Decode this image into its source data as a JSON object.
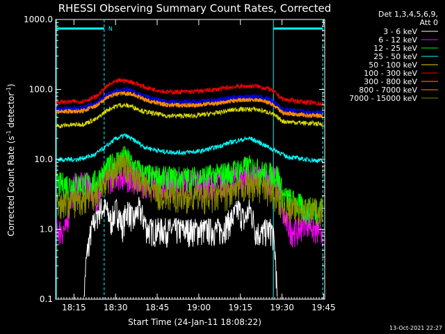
{
  "chart_data": {
    "type": "line",
    "title": "RHESSI Observing Summary Count Rates, Corrected",
    "xlabel": "Start Time (24-Jan-11 18:08:22)",
    "ylabel_main": "Corrected Count Rate (s",
    "ylabel_sup1": "-1",
    "ylabel_mid": " detector",
    "ylabel_sup2": "-1",
    "ylabel_end": ")",
    "y_scale": "log",
    "ylim": [
      0.1,
      1000
    ],
    "y_ticks": [
      "0.1",
      "1.0",
      "10.0",
      "100.0",
      "1000.0"
    ],
    "xlim_minutes": [
      0,
      97
    ],
    "x_ticks": [
      {
        "label": "18:15",
        "min": 6.6
      },
      {
        "label": "18:30",
        "min": 21.6
      },
      {
        "label": "18:45",
        "min": 36.6
      },
      {
        "label": "19:00",
        "min": 51.6
      },
      {
        "label": "19:15",
        "min": 66.6
      },
      {
        "label": "19:30",
        "min": 81.6
      },
      {
        "label": "19:45",
        "min": 96.6
      }
    ],
    "legend_header": [
      "Det 1,3,4,5,6,9,",
      "Att 0"
    ],
    "legend_position": "right",
    "night_bar_label": "N",
    "night_intervals_min": [
      [
        0.3,
        17.5
      ],
      [
        78.5,
        96.3
      ]
    ],
    "vertical_markers_min": [
      {
        "min": 0.3,
        "style": "solid"
      },
      {
        "min": 17.5,
        "style": "dashed"
      },
      {
        "min": 78.5,
        "style": "solid"
      },
      {
        "min": 96.3,
        "style": "dashed"
      }
    ],
    "series": [
      {
        "name": "3 - 6 keV",
        "color": "#ffffff",
        "points": [
          [
            0.3,
            0
          ],
          [
            5,
            0
          ],
          [
            10,
            0
          ],
          [
            16,
            2
          ],
          [
            18,
            2
          ],
          [
            20,
            1.3
          ],
          [
            22,
            2
          ],
          [
            24,
            1.1
          ],
          [
            26,
            2
          ],
          [
            28,
            1.3
          ],
          [
            30,
            2
          ],
          [
            33,
            1
          ],
          [
            40,
            1
          ],
          [
            50,
            1
          ],
          [
            60,
            1
          ],
          [
            64,
            1.5
          ],
          [
            66,
            2
          ],
          [
            68,
            1.3
          ],
          [
            70,
            2
          ],
          [
            72,
            1
          ],
          [
            74,
            0.85
          ],
          [
            76,
            1
          ],
          [
            78,
            1
          ],
          [
            80,
            0
          ]
        ]
      },
      {
        "name": "6 - 12 keV",
        "color": "#ff00ff",
        "points": [
          [
            0.3,
            1.0
          ],
          [
            4,
            1.0
          ],
          [
            5.5,
            3
          ],
          [
            7,
            4.5
          ],
          [
            12,
            4.5
          ],
          [
            15,
            3
          ],
          [
            17,
            4.5
          ],
          [
            19,
            5.5
          ],
          [
            22,
            6.5
          ],
          [
            26,
            6
          ],
          [
            30,
            5
          ],
          [
            40,
            5
          ],
          [
            50,
            5
          ],
          [
            58,
            4.5
          ],
          [
            65,
            5.5
          ],
          [
            70,
            6
          ],
          [
            75,
            5.5
          ],
          [
            80,
            5.5
          ],
          [
            82,
            1.5
          ],
          [
            85,
            1
          ],
          [
            88,
            1
          ],
          [
            90,
            1.5
          ],
          [
            93,
            1
          ],
          [
            96.3,
            1
          ]
        ]
      },
      {
        "name": "12 - 25 keV",
        "color": "#00ff00",
        "points": [
          [
            0.3,
            4.5
          ],
          [
            12,
            4.5
          ],
          [
            15,
            5
          ],
          [
            18,
            7
          ],
          [
            21,
            9
          ],
          [
            25,
            11
          ],
          [
            28,
            8
          ],
          [
            32,
            6
          ],
          [
            40,
            5.5
          ],
          [
            50,
            5.5
          ],
          [
            58,
            6
          ],
          [
            65,
            7
          ],
          [
            70,
            8
          ],
          [
            75,
            6.5
          ],
          [
            80,
            6
          ],
          [
            82,
            3
          ],
          [
            86,
            2.5
          ],
          [
            90,
            2
          ],
          [
            94,
            2
          ],
          [
            96.3,
            2
          ]
        ]
      },
      {
        "name": "25 - 50 keV",
        "color": "#00ffff",
        "points": [
          [
            0.3,
            10
          ],
          [
            8,
            10
          ],
          [
            14,
            11.5
          ],
          [
            18,
            15
          ],
          [
            22,
            20
          ],
          [
            25,
            22
          ],
          [
            28,
            19
          ],
          [
            32,
            15
          ],
          [
            38,
            13
          ],
          [
            45,
            12.5
          ],
          [
            52,
            13
          ],
          [
            58,
            15
          ],
          [
            64,
            18
          ],
          [
            70,
            20
          ],
          [
            74,
            17
          ],
          [
            78,
            14
          ],
          [
            80,
            13
          ],
          [
            83,
            11
          ],
          [
            90,
            10
          ],
          [
            96.3,
            9.5
          ]
        ]
      },
      {
        "name": "50 - 100 keV",
        "color": "#dddd00",
        "points": [
          [
            0.3,
            30
          ],
          [
            10,
            32
          ],
          [
            15,
            38
          ],
          [
            19,
            52
          ],
          [
            23,
            60
          ],
          [
            27,
            58
          ],
          [
            32,
            48
          ],
          [
            40,
            42
          ],
          [
            50,
            42
          ],
          [
            58,
            46
          ],
          [
            65,
            52
          ],
          [
            72,
            52
          ],
          [
            77,
            47
          ],
          [
            79,
            42
          ],
          [
            82,
            35
          ],
          [
            90,
            33
          ],
          [
            96.3,
            32
          ]
        ]
      },
      {
        "name": "100 - 300 keV",
        "color": "#ff0000",
        "points": [
          [
            0.3,
            65
          ],
          [
            10,
            68
          ],
          [
            15,
            80
          ],
          [
            19,
            115
          ],
          [
            23,
            135
          ],
          [
            27,
            130
          ],
          [
            33,
            105
          ],
          [
            40,
            92
          ],
          [
            50,
            93
          ],
          [
            58,
            100
          ],
          [
            65,
            110
          ],
          [
            72,
            112
          ],
          [
            77,
            102
          ],
          [
            79,
            90
          ],
          [
            82,
            72
          ],
          [
            90,
            66
          ],
          [
            96.3,
            62
          ]
        ]
      },
      {
        "name": "300 - 800 keV",
        "color": "#ff8c00",
        "points": [
          [
            0.3,
            48
          ],
          [
            10,
            50
          ],
          [
            15,
            60
          ],
          [
            19,
            80
          ],
          [
            23,
            90
          ],
          [
            27,
            88
          ],
          [
            33,
            70
          ],
          [
            40,
            60
          ],
          [
            50,
            60
          ],
          [
            58,
            64
          ],
          [
            65,
            70
          ],
          [
            72,
            72
          ],
          [
            77,
            66
          ],
          [
            79,
            58
          ],
          [
            82,
            46
          ],
          [
            90,
            43
          ],
          [
            96.3,
            42
          ]
        ]
      },
      {
        "name": "800 - 7000 keV",
        "color": "#ff8c00",
        "points": [
          [
            0.3,
            48
          ],
          [
            10,
            50
          ],
          [
            15,
            60
          ],
          [
            19,
            80
          ],
          [
            23,
            90
          ],
          [
            27,
            88
          ],
          [
            33,
            70
          ],
          [
            40,
            60
          ],
          [
            50,
            60
          ],
          [
            58,
            64
          ],
          [
            65,
            70
          ],
          [
            72,
            72
          ],
          [
            77,
            66
          ],
          [
            79,
            58
          ],
          [
            82,
            46
          ],
          [
            90,
            43
          ],
          [
            96.3,
            42
          ]
        ]
      },
      {
        "name": "Det Composite",
        "color": "#0000ff",
        "hidden_in_legend": true,
        "points": [
          [
            0.3,
            53
          ],
          [
            10,
            55
          ],
          [
            15,
            66
          ],
          [
            19,
            88
          ],
          [
            23,
            100
          ],
          [
            27,
            97
          ],
          [
            33,
            78
          ],
          [
            40,
            67
          ],
          [
            50,
            67
          ],
          [
            58,
            71
          ],
          [
            65,
            78
          ],
          [
            72,
            80
          ],
          [
            77,
            73
          ],
          [
            79,
            65
          ],
          [
            82,
            52
          ],
          [
            90,
            48
          ],
          [
            96.3,
            47
          ]
        ]
      },
      {
        "name": "7000 - 15000 keV",
        "color": "#8b8b00",
        "points": [
          [
            0.3,
            2.5
          ],
          [
            5,
            2.5
          ],
          [
            10,
            2.8
          ],
          [
            15,
            3.5
          ],
          [
            18,
            5
          ],
          [
            21,
            7
          ],
          [
            24,
            9
          ],
          [
            27,
            7
          ],
          [
            30,
            5
          ],
          [
            35,
            3.5
          ],
          [
            40,
            3
          ],
          [
            50,
            3
          ],
          [
            58,
            3
          ],
          [
            65,
            3.5
          ],
          [
            70,
            4.5
          ],
          [
            75,
            4
          ],
          [
            80,
            3
          ],
          [
            83,
            2
          ],
          [
            90,
            2
          ],
          [
            96.3,
            2
          ]
        ]
      }
    ],
    "legend_entries": [
      {
        "label": "3 - 6 keV",
        "color": "#ffffff"
      },
      {
        "label": "6 - 12 keV",
        "color": "#ff00ff"
      },
      {
        "label": "12 - 25 keV",
        "color": "#00ff00"
      },
      {
        "label": "25 - 50 keV",
        "color": "#00ffff"
      },
      {
        "label": "50 - 100 keV",
        "color": "#dddd00"
      },
      {
        "label": "100 - 300 keV",
        "color": "#ff0000"
      },
      {
        "label": "300 - 800 keV",
        "color": "#ff8c00"
      },
      {
        "label": "800 - 7000 keV",
        "color": "#ff8c00"
      },
      {
        "label": "7000 - 15000 keV",
        "color": "#8b8b00"
      }
    ],
    "timestamp": "13-Oct-2021 22:27"
  }
}
